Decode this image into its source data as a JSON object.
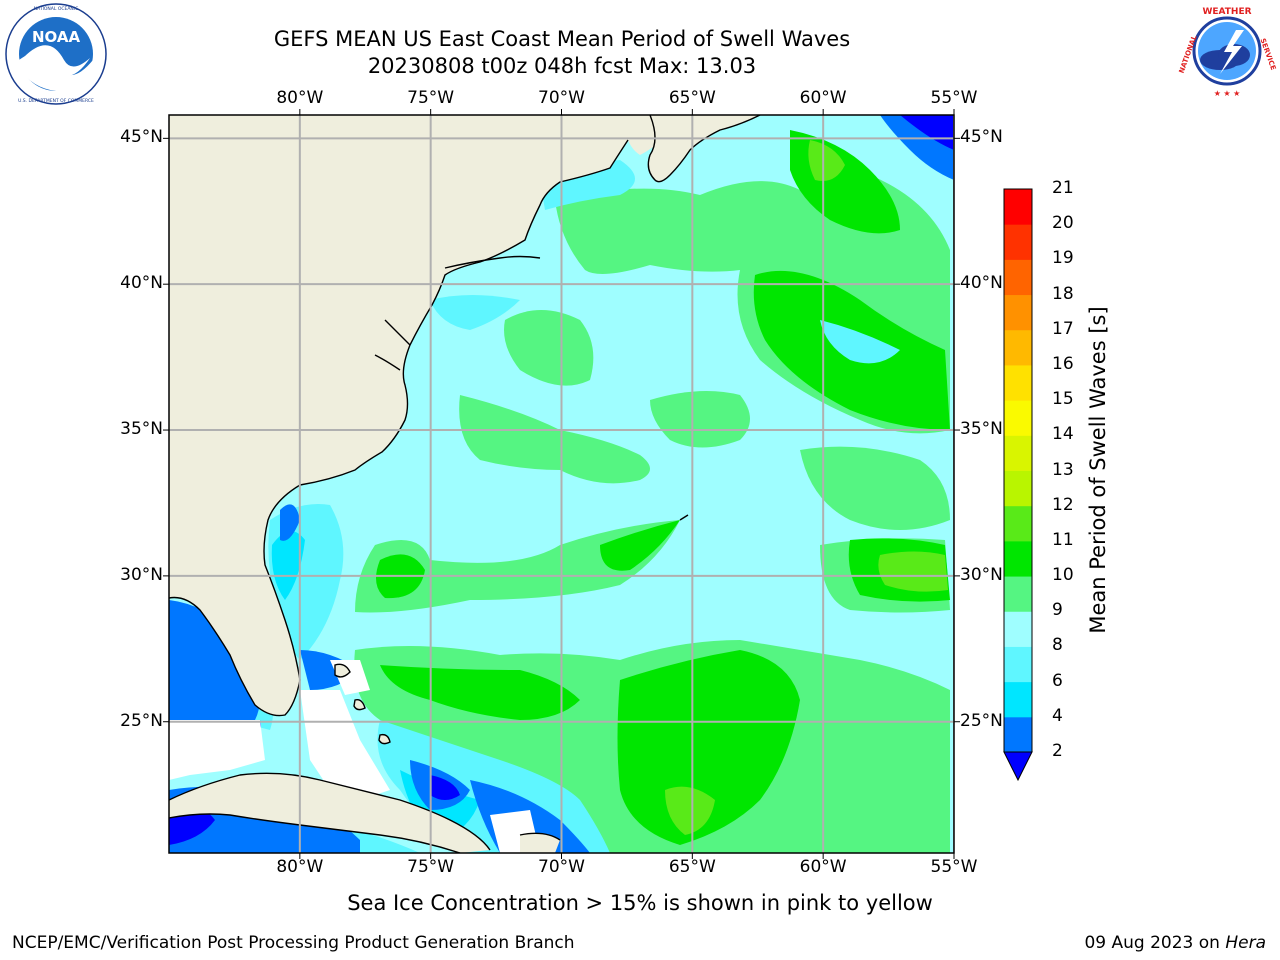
{
  "header": {
    "title_line1": "GEFS MEAN US East Coast Mean Period of Swell Waves",
    "title_line2": "20230808 t00z 048h fcst   Max: 13.03"
  },
  "logos": {
    "left": {
      "text": "NOAA",
      "icon": "noaa-logo-icon",
      "ring_text": "NATIONAL OCEANIC AND ATMOSPHERIC ADMINISTRATION · U.S. DEPARTMENT OF COMMERCE"
    },
    "right": {
      "icon": "nws-logo-icon",
      "ring_text": "NATIONAL WEATHER SERVICE"
    }
  },
  "map": {
    "lon_range": [
      -85,
      -55
    ],
    "lat_range": [
      20.5,
      45.8
    ],
    "lon_ticks": [
      "80°W",
      "75°W",
      "70°W",
      "65°W",
      "60°W",
      "55°W"
    ],
    "lat_ticks": [
      "45°N",
      "40°N",
      "35°N",
      "30°N",
      "25°N"
    ],
    "colors": {
      "land": "#efeedd",
      "ocean_base": "#9ffeff",
      "grid": "#b0b0b0",
      "coast": "#000000"
    }
  },
  "colorbar": {
    "label": "Mean Period of Swell Waves [s]",
    "ticks": [
      "2",
      "4",
      "6",
      "8",
      "9",
      "10",
      "11",
      "12",
      "13",
      "14",
      "15",
      "16",
      "17",
      "18",
      "19",
      "20",
      "21"
    ],
    "colors": [
      "#0077ff",
      "#00e6ff",
      "#5ff6ff",
      "#9ffeff",
      "#55f582",
      "#00e600",
      "#59ea18",
      "#b9f500",
      "#d9f500",
      "#fafa00",
      "#ffe100",
      "#ffb900",
      "#ff9100",
      "#ff6400",
      "#ff3200",
      "#ff0000"
    ],
    "under_color": "#0000ff"
  },
  "annotations": {
    "sea_ice_note": "Sea Ice Concentration > 15% is shown in pink to yellow"
  },
  "footer": {
    "left": "NCEP/EMC/Verification Post Processing Product Generation Branch",
    "date": "09 Aug 2023 on ",
    "machine": "Hera"
  }
}
